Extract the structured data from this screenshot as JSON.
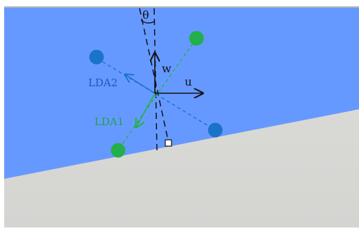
{
  "labels": {
    "theta": "θ",
    "w": "w",
    "u": "u",
    "lda2": "LDA2",
    "lda1": "LDA1"
  },
  "colors": {
    "sky": "#6699ff",
    "ground": "#d9d9d6",
    "frame": "#b9b9b9",
    "green": "#22b04b",
    "blue": "#1a73c9",
    "ink": "#111111",
    "lda2_text": "#2255bb",
    "lda1_text": "#22a050"
  },
  "points": [
    {
      "class": "green",
      "name": "green-point-upper-right"
    },
    {
      "class": "blue",
      "name": "blue-point-upper-left"
    },
    {
      "class": "blue",
      "name": "blue-point-lower-right"
    },
    {
      "class": "green",
      "name": "green-point-lower-left"
    }
  ]
}
